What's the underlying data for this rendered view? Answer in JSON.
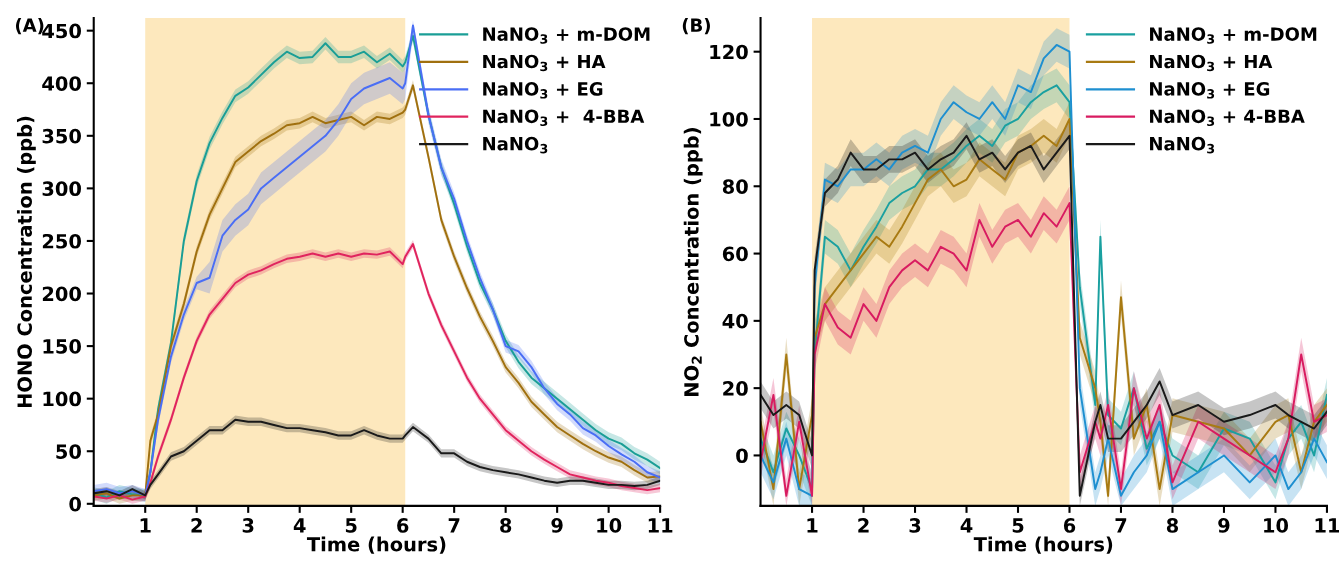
{
  "chart_data": [
    {
      "type": "line",
      "ylabel": "HONO Concentration (ppb)",
      "xlabel": "Time (hours)",
      "annotations": [
        "(A)"
      ],
      "x": [
        0,
        0.25,
        0.5,
        0.75,
        1,
        1.1,
        1.25,
        1.5,
        1.75,
        2,
        2.25,
        2.5,
        2.75,
        3,
        3.25,
        3.5,
        3.75,
        4,
        4.25,
        4.5,
        4.75,
        5,
        5.25,
        5.5,
        5.75,
        6,
        6.05,
        6.2,
        6.5,
        6.75,
        7,
        7.25,
        7.5,
        7.75,
        8,
        8.25,
        8.5,
        8.75,
        9,
        9.25,
        9.5,
        9.75,
        10,
        10.25,
        10.5,
        10.75,
        11
      ],
      "series": [
        {
          "name": "NaNO$_{3}$ + m-DOM",
          "color": "#1a9e96",
          "values": [
            10,
            6,
            12,
            9,
            8,
            30,
            90,
            153,
            250,
            307,
            343,
            367,
            388,
            396,
            408,
            420,
            430,
            424,
            425,
            438,
            425,
            425,
            430,
            420,
            428,
            416,
            420,
            445,
            370,
            320,
            285,
            245,
            210,
            185,
            155,
            135,
            120,
            110,
            100,
            90,
            80,
            70,
            62,
            57,
            48,
            42,
            34
          ],
          "lower": [
            4,
            0,
            6,
            3,
            2,
            24,
            84,
            147,
            244,
            301,
            337,
            361,
            382,
            390,
            402,
            414,
            424,
            418,
            419,
            432,
            419,
            419,
            424,
            414,
            422,
            410,
            414,
            439,
            364,
            314,
            279,
            239,
            204,
            179,
            149,
            129,
            114,
            104,
            94,
            84,
            74,
            64,
            56,
            51,
            42,
            36,
            28
          ],
          "upper": [
            16,
            12,
            18,
            15,
            14,
            36,
            96,
            159,
            256,
            313,
            349,
            373,
            394,
            402,
            414,
            426,
            436,
            430,
            431,
            444,
            431,
            431,
            436,
            426,
            434,
            422,
            426,
            451,
            376,
            326,
            291,
            251,
            216,
            191,
            161,
            141,
            126,
            116,
            106,
            96,
            86,
            76,
            68,
            63,
            54,
            48,
            40
          ]
        },
        {
          "name": "NaNO$_{3}$ + HA",
          "color": "#a0700f",
          "values": [
            8,
            10,
            5,
            8,
            8,
            60,
            85,
            150,
            190,
            240,
            275,
            300,
            325,
            335,
            345,
            352,
            360,
            362,
            368,
            362,
            365,
            368,
            360,
            368,
            366,
            372,
            375,
            398,
            330,
            270,
            235,
            205,
            178,
            155,
            130,
            115,
            97,
            85,
            73,
            65,
            57,
            50,
            44,
            40,
            32,
            25,
            26
          ],
          "lower": [
            3,
            5,
            0,
            3,
            3,
            55,
            80,
            145,
            185,
            235,
            270,
            295,
            320,
            330,
            340,
            347,
            355,
            357,
            363,
            357,
            360,
            363,
            355,
            363,
            361,
            367,
            370,
            393,
            325,
            265,
            230,
            200,
            173,
            150,
            125,
            110,
            92,
            80,
            68,
            60,
            52,
            45,
            39,
            35,
            27,
            20,
            21
          ],
          "upper": [
            13,
            15,
            10,
            13,
            13,
            65,
            90,
            155,
            195,
            245,
            280,
            305,
            330,
            340,
            350,
            357,
            365,
            367,
            373,
            367,
            370,
            373,
            365,
            373,
            371,
            377,
            380,
            403,
            335,
            275,
            240,
            210,
            183,
            160,
            135,
            120,
            102,
            90,
            78,
            70,
            62,
            55,
            49,
            45,
            37,
            30,
            31
          ]
        },
        {
          "name": "NaNO$_{3}$ + EG",
          "color": "#4a6ef5",
          "values": [
            12,
            14,
            10,
            12,
            8,
            30,
            80,
            140,
            180,
            210,
            215,
            255,
            270,
            280,
            300,
            310,
            320,
            330,
            340,
            350,
            365,
            385,
            395,
            400,
            405,
            395,
            400,
            455,
            370,
            320,
            290,
            250,
            215,
            185,
            150,
            145,
            130,
            110,
            95,
            85,
            72,
            65,
            55,
            47,
            40,
            30,
            25
          ],
          "lower": [
            6,
            8,
            4,
            6,
            2,
            24,
            74,
            134,
            174,
            204,
            200,
            240,
            255,
            265,
            285,
            295,
            305,
            315,
            325,
            335,
            350,
            370,
            380,
            385,
            390,
            380,
            385,
            445,
            362,
            312,
            284,
            244,
            209,
            179,
            144,
            139,
            124,
            104,
            89,
            79,
            66,
            59,
            49,
            41,
            34,
            24,
            19
          ],
          "upper": [
            18,
            20,
            16,
            18,
            14,
            36,
            86,
            146,
            186,
            216,
            230,
            270,
            285,
            295,
            315,
            325,
            335,
            345,
            355,
            365,
            380,
            400,
            410,
            415,
            420,
            410,
            415,
            460,
            378,
            328,
            296,
            256,
            221,
            191,
            156,
            151,
            136,
            116,
            101,
            91,
            78,
            71,
            61,
            53,
            46,
            36,
            31
          ]
        },
        {
          "name": "NaNO$_{3}$ +  4-BBA",
          "color": "#e0245e",
          "values": [
            7,
            5,
            8,
            4,
            7,
            20,
            45,
            80,
            120,
            155,
            180,
            195,
            210,
            218,
            222,
            228,
            233,
            235,
            238,
            235,
            238,
            235,
            238,
            237,
            240,
            228,
            235,
            247,
            200,
            170,
            145,
            120,
            100,
            85,
            70,
            60,
            50,
            42,
            35,
            28,
            25,
            22,
            20,
            17,
            15,
            13,
            15
          ],
          "lower": [
            3,
            1,
            4,
            0,
            3,
            16,
            41,
            76,
            116,
            151,
            176,
            191,
            206,
            214,
            218,
            224,
            229,
            231,
            234,
            231,
            234,
            231,
            234,
            233,
            236,
            224,
            231,
            243,
            196,
            166,
            141,
            116,
            96,
            81,
            66,
            56,
            46,
            38,
            31,
            24,
            21,
            18,
            16,
            13,
            11,
            9,
            11
          ],
          "upper": [
            11,
            9,
            12,
            8,
            11,
            24,
            49,
            84,
            124,
            159,
            184,
            199,
            214,
            222,
            226,
            232,
            237,
            239,
            242,
            239,
            242,
            239,
            242,
            241,
            244,
            232,
            239,
            251,
            204,
            174,
            149,
            124,
            104,
            89,
            74,
            64,
            54,
            46,
            39,
            32,
            29,
            26,
            24,
            21,
            19,
            17,
            19
          ]
        },
        {
          "name": "NaNO$_{3}$",
          "color": "#1a1a1a",
          "values": [
            10,
            12,
            8,
            14,
            8,
            18,
            28,
            45,
            50,
            60,
            70,
            70,
            80,
            78,
            78,
            75,
            72,
            72,
            70,
            68,
            65,
            65,
            70,
            65,
            62,
            62,
            65,
            73,
            62,
            48,
            48,
            40,
            35,
            32,
            30,
            28,
            25,
            22,
            20,
            22,
            22,
            20,
            18,
            18,
            17,
            18,
            22
          ],
          "lower": [
            6,
            8,
            4,
            10,
            4,
            14,
            24,
            41,
            46,
            56,
            66,
            66,
            76,
            74,
            74,
            71,
            68,
            68,
            66,
            64,
            61,
            61,
            66,
            61,
            58,
            58,
            61,
            69,
            58,
            44,
            44,
            36,
            31,
            28,
            26,
            24,
            21,
            18,
            16,
            18,
            18,
            16,
            14,
            14,
            13,
            14,
            18
          ],
          "upper": [
            14,
            16,
            12,
            18,
            12,
            22,
            32,
            49,
            54,
            64,
            74,
            74,
            84,
            82,
            82,
            79,
            76,
            76,
            74,
            72,
            69,
            69,
            74,
            69,
            66,
            66,
            69,
            77,
            66,
            52,
            52,
            44,
            39,
            36,
            34,
            32,
            29,
            26,
            24,
            26,
            26,
            24,
            22,
            22,
            21,
            22,
            26
          ]
        }
      ],
      "xlim": [
        0,
        11
      ],
      "xticks": [
        1,
        2,
        3,
        4,
        5,
        6,
        7,
        8,
        9,
        10,
        11
      ],
      "ylim": [
        -2,
        462
      ],
      "yticks": [
        0,
        50,
        100,
        150,
        200,
        250,
        300,
        350,
        400,
        450
      ],
      "bands": [
        {
          "axis": "x",
          "from": 1,
          "to": 6.05,
          "color": "#fde8bd"
        }
      ],
      "legend": "top right",
      "grid": false,
      "line_style": "solid"
    },
    {
      "type": "line",
      "ylabel": "NO$_{2}$ Concentration (ppb)",
      "xlabel": "Time (hours)",
      "annotations": [
        "(B)"
      ],
      "x": [
        0,
        0.25,
        0.5,
        0.75,
        1,
        1.05,
        1.25,
        1.5,
        1.75,
        2,
        2.25,
        2.5,
        2.75,
        3,
        3.25,
        3.5,
        3.75,
        4,
        4.25,
        4.5,
        4.75,
        5,
        5.25,
        5.5,
        5.75,
        6,
        6.2,
        6.5,
        6.6,
        6.75,
        7,
        7.25,
        7.5,
        7.75,
        8,
        8.5,
        9,
        9.5,
        10,
        10.25,
        10.5,
        10.75,
        11
      ],
      "series": [
        {
          "name": "NaNO$_{3}$ + m-DOM",
          "color": "#1aa0a0",
          "values": [
            5,
            -5,
            8,
            0,
            -10,
            30,
            65,
            62,
            55,
            62,
            68,
            75,
            78,
            80,
            85,
            85,
            88,
            92,
            95,
            92,
            98,
            100,
            105,
            108,
            110,
            105,
            50,
            15,
            65,
            12,
            8,
            20,
            2,
            10,
            0,
            -5,
            8,
            5,
            -8,
            5,
            10,
            0,
            18
          ],
          "lower": [
            0,
            -10,
            3,
            -5,
            -15,
            25,
            60,
            57,
            50,
            57,
            63,
            70,
            73,
            75,
            80,
            80,
            83,
            87,
            90,
            87,
            93,
            95,
            100,
            103,
            105,
            100,
            45,
            10,
            60,
            7,
            3,
            15,
            -3,
            5,
            -5,
            -10,
            3,
            0,
            -13,
            0,
            5,
            -5,
            13
          ],
          "upper": [
            10,
            0,
            13,
            5,
            -5,
            35,
            70,
            67,
            60,
            67,
            73,
            80,
            83,
            85,
            90,
            90,
            93,
            97,
            100,
            97,
            103,
            105,
            110,
            113,
            115,
            110,
            55,
            20,
            70,
            17,
            13,
            25,
            7,
            15,
            5,
            0,
            13,
            10,
            -3,
            10,
            15,
            5,
            23
          ]
        },
        {
          "name": "NaNO$_{3}$ + HA",
          "color": "#a87a12",
          "values": [
            10,
            -10,
            30,
            -10,
            12,
            35,
            45,
            50,
            55,
            60,
            65,
            62,
            68,
            75,
            82,
            85,
            80,
            82,
            88,
            85,
            82,
            90,
            92,
            95,
            92,
            100,
            35,
            20,
            10,
            -12,
            47,
            5,
            15,
            -10,
            12,
            10,
            8,
            0,
            10,
            12,
            -5,
            10,
            15
          ],
          "lower": [
            5,
            -15,
            25,
            -15,
            7,
            30,
            40,
            45,
            50,
            55,
            60,
            57,
            63,
            70,
            77,
            80,
            75,
            77,
            83,
            80,
            77,
            85,
            87,
            90,
            87,
            95,
            30,
            15,
            5,
            -15,
            42,
            0,
            10,
            -15,
            7,
            5,
            3,
            -5,
            5,
            7,
            -10,
            5,
            10
          ],
          "upper": [
            15,
            -5,
            35,
            -5,
            17,
            40,
            50,
            55,
            60,
            65,
            70,
            67,
            73,
            80,
            87,
            90,
            85,
            87,
            93,
            90,
            87,
            95,
            97,
            100,
            97,
            105,
            40,
            25,
            15,
            -7,
            52,
            10,
            20,
            -5,
            17,
            15,
            13,
            5,
            15,
            17,
            0,
            15,
            20
          ]
        },
        {
          "name": "NaNO$_{3}$ + EG",
          "color": "#1e8fd0",
          "values": [
            0,
            -8,
            5,
            -10,
            -12,
            50,
            82,
            80,
            85,
            85,
            88,
            85,
            90,
            92,
            90,
            100,
            105,
            102,
            100,
            105,
            100,
            110,
            108,
            118,
            122,
            120,
            20,
            -10,
            -5,
            5,
            -12,
            -5,
            0,
            10,
            -10,
            -5,
            0,
            -8,
            0,
            -10,
            -5,
            5,
            -2
          ],
          "lower": [
            -5,
            -13,
            0,
            -15,
            -15,
            45,
            77,
            75,
            80,
            80,
            83,
            80,
            85,
            87,
            85,
            95,
            100,
            97,
            95,
            100,
            95,
            105,
            103,
            113,
            117,
            115,
            15,
            -15,
            -10,
            0,
            -15,
            -10,
            -5,
            5,
            -15,
            -10,
            -5,
            -13,
            -5,
            -15,
            -10,
            0,
            -7
          ],
          "upper": [
            5,
            -3,
            10,
            -5,
            -7,
            55,
            87,
            85,
            90,
            90,
            93,
            90,
            95,
            97,
            95,
            105,
            110,
            107,
            105,
            110,
            105,
            115,
            113,
            123,
            127,
            125,
            25,
            -5,
            0,
            10,
            -7,
            0,
            5,
            15,
            -5,
            0,
            5,
            -3,
            5,
            -5,
            0,
            10,
            3
          ]
        },
        {
          "name": "NaNO$_{3}$ + 4-BBA",
          "color": "#d81b60",
          "values": [
            -2,
            18,
            -12,
            10,
            -12,
            30,
            45,
            38,
            35,
            45,
            40,
            50,
            55,
            58,
            55,
            62,
            60,
            55,
            70,
            62,
            68,
            70,
            65,
            72,
            68,
            75,
            -5,
            10,
            5,
            15,
            -10,
            20,
            5,
            15,
            -8,
            10,
            5,
            0,
            -5,
            5,
            30,
            10,
            12
          ],
          "lower": [
            -7,
            13,
            -15,
            5,
            -15,
            25,
            40,
            33,
            30,
            40,
            35,
            45,
            50,
            53,
            50,
            57,
            55,
            50,
            65,
            57,
            63,
            65,
            60,
            67,
            63,
            70,
            -10,
            5,
            0,
            10,
            -15,
            15,
            0,
            10,
            -13,
            5,
            0,
            -5,
            -10,
            0,
            25,
            5,
            7
          ],
          "upper": [
            3,
            23,
            -7,
            15,
            -7,
            35,
            50,
            43,
            40,
            50,
            45,
            55,
            60,
            63,
            60,
            67,
            65,
            60,
            75,
            67,
            73,
            75,
            70,
            77,
            73,
            80,
            0,
            15,
            10,
            20,
            -5,
            25,
            10,
            20,
            -3,
            15,
            10,
            5,
            0,
            10,
            35,
            15,
            17
          ]
        },
        {
          "name": "NaNO$_{3}$",
          "color": "#1a1a1a",
          "values": [
            18,
            12,
            15,
            12,
            0,
            55,
            78,
            82,
            90,
            85,
            85,
            88,
            88,
            90,
            85,
            88,
            90,
            95,
            88,
            90,
            85,
            90,
            92,
            85,
            90,
            95,
            -12,
            10,
            15,
            5,
            5,
            10,
            15,
            22,
            12,
            15,
            10,
            12,
            15,
            12,
            10,
            8,
            13
          ],
          "lower": [
            14,
            8,
            11,
            8,
            -4,
            51,
            74,
            78,
            86,
            81,
            81,
            84,
            84,
            86,
            81,
            84,
            86,
            91,
            84,
            86,
            81,
            86,
            88,
            81,
            86,
            91,
            -15,
            6,
            11,
            1,
            1,
            6,
            11,
            18,
            8,
            11,
            6,
            8,
            11,
            8,
            6,
            4,
            9
          ],
          "upper": [
            22,
            16,
            19,
            16,
            4,
            59,
            82,
            86,
            94,
            89,
            89,
            92,
            92,
            94,
            89,
            92,
            94,
            99,
            92,
            94,
            89,
            94,
            96,
            89,
            94,
            99,
            -8,
            14,
            19,
            9,
            9,
            14,
            19,
            26,
            16,
            19,
            14,
            16,
            19,
            16,
            14,
            12,
            17
          ]
        }
      ],
      "xlim": [
        0,
        11
      ],
      "xticks": [
        1,
        2,
        3,
        4,
        5,
        6,
        7,
        8,
        9,
        10,
        11
      ],
      "ylim": [
        -15,
        130
      ],
      "yticks": [
        0,
        20,
        40,
        60,
        80,
        100,
        120
      ],
      "bands": [
        {
          "axis": "x",
          "from": 1,
          "to": 6,
          "color": "#fde8bd"
        }
      ],
      "legend": "top right",
      "grid": false,
      "line_style": "solid"
    }
  ]
}
